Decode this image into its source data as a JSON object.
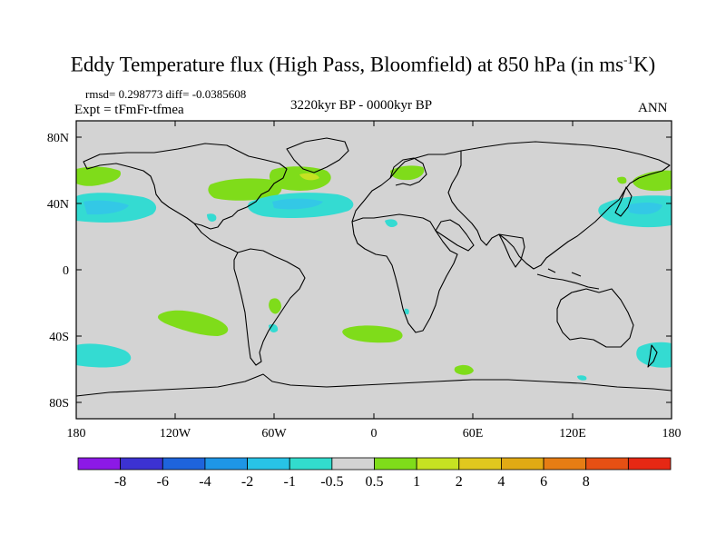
{
  "title": {
    "main": "Eddy Temperature flux (High Pass, Bloomfield) at 850 hPa (in ms",
    "superscript": "-1",
    "unit_tail": "K)"
  },
  "stats": "rmsd= 0.298773 diff= -0.0385608",
  "experiment": "Expt = tFmFr-tfmea",
  "period": "3220kyr BP - 0000kyr BP",
  "season": "ANN",
  "colors": {
    "land_ocean_neutral": "#d3d3d3",
    "green": "#7fdc1a",
    "yellow_green": "#c6e222",
    "cyan": "#34dbd2",
    "light_blue": "#33c8e6"
  },
  "axes": {
    "lat_labels": [
      "80N",
      "40N",
      "0",
      "40S",
      "80S"
    ],
    "lon_labels": [
      "180",
      "120W",
      "60W",
      "0",
      "60E",
      "120E",
      "180"
    ]
  },
  "colorbar": {
    "colors": [
      "#8c19e6",
      "#3c32d2",
      "#1e64dc",
      "#1e96e6",
      "#28c3e6",
      "#32dccd",
      "#d3d3d3",
      "#7fdc1a",
      "#c6e222",
      "#e1c81e",
      "#e1aa14",
      "#e67d14",
      "#e65014",
      "#e62814"
    ],
    "labels": [
      "-8",
      "-6",
      "-4",
      "-2",
      "-1",
      "-0.5",
      "0.5",
      "1",
      "2",
      "4",
      "6",
      "8"
    ]
  }
}
